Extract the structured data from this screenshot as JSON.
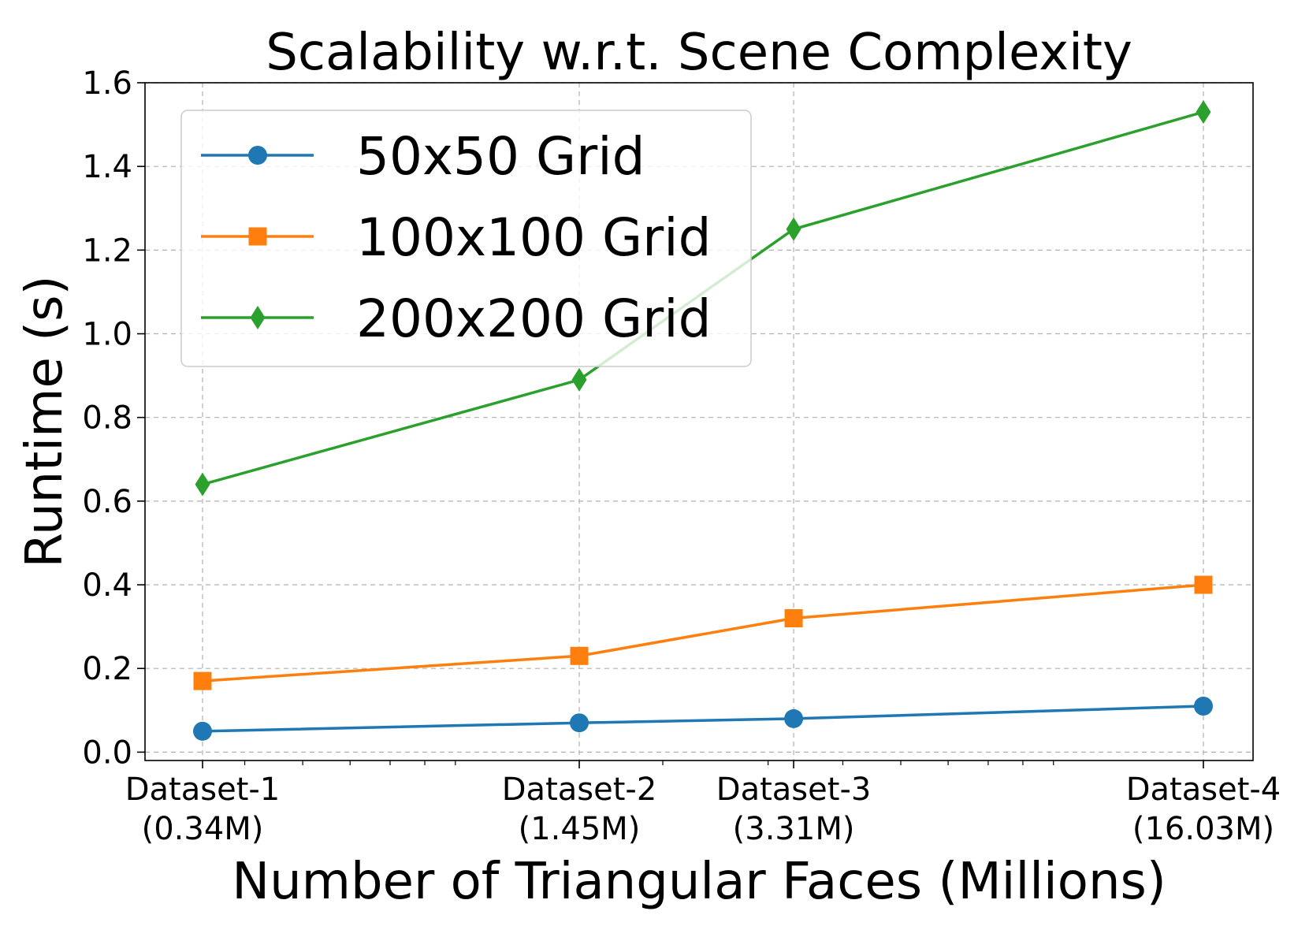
{
  "chart_data": {
    "type": "line",
    "title": "Scalability w.r.t. Scene Complexity",
    "xlabel": "Number of Triangular Faces (Millions)",
    "ylabel": "Runtime (s)",
    "x": [
      0.34,
      1.45,
      3.31,
      16.03
    ],
    "x_scale": "log",
    "x_tick_labels": [
      [
        "Dataset-1",
        "(0.34M)"
      ],
      [
        "Dataset-2",
        "(1.45M)"
      ],
      [
        "Dataset-3",
        "(3.31M)"
      ],
      [
        "Dataset-4",
        "(16.03M)"
      ]
    ],
    "ylim": [
      -0.02,
      1.6
    ],
    "yticks": [
      0.0,
      0.2,
      0.4,
      0.6,
      0.8,
      1.0,
      1.2,
      1.4,
      1.6
    ],
    "grid": true,
    "legend_position": "upper-left",
    "series": [
      {
        "name": "50x50 Grid",
        "values": [
          0.05,
          0.07,
          0.08,
          0.11
        ],
        "color": "#1f77b4",
        "marker": "circle"
      },
      {
        "name": "100x100 Grid",
        "values": [
          0.17,
          0.23,
          0.32,
          0.4
        ],
        "color": "#ff7f0e",
        "marker": "square"
      },
      {
        "name": "200x200 Grid",
        "values": [
          0.64,
          0.89,
          1.25,
          1.53
        ],
        "color": "#2ca02c",
        "marker": "diamond"
      }
    ]
  }
}
